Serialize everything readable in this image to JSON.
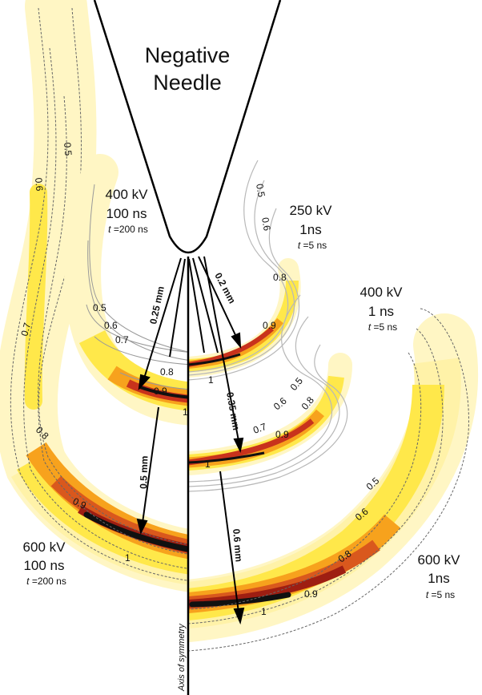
{
  "needle": {
    "line1": "Negative",
    "line2": "Needle"
  },
  "axis_label": "Axis of symmetry",
  "cases": [
    {
      "id": "c400_100",
      "voltage": "400 kV",
      "duration": "100 ns",
      "t_symbol": "t",
      "t_value": " =200 ns",
      "distance": "0.25 mm",
      "contours": [
        "0.5",
        "0.6",
        "0.7",
        "0.8",
        "0.9",
        "1"
      ]
    },
    {
      "id": "c600_100",
      "voltage": "600 kV",
      "duration": "100 ns",
      "t_symbol": "t",
      "t_value": " =200 ns",
      "distance": "0.5 mm",
      "contours": [
        "0.5",
        "0.6",
        "0.7",
        "0.8",
        "0.9",
        "1"
      ]
    },
    {
      "id": "c250_1",
      "voltage": "250 kV",
      "duration": "1ns",
      "t_symbol": "t",
      "t_value": " =5 ns",
      "distance": "0.2 mm",
      "contours": [
        "0.5",
        "0.6",
        "0.8",
        "0.9",
        "1"
      ]
    },
    {
      "id": "c400_1",
      "voltage": "400 kV",
      "duration": "1 ns",
      "t_symbol": "t",
      "t_value": " =5 ns",
      "distance": "0.35 mm",
      "contours": [
        "0.5",
        "0.6",
        "0.7",
        "0.8",
        "0.9",
        "1"
      ]
    },
    {
      "id": "c600_1",
      "voltage": "600 kV",
      "duration": "1ns",
      "t_symbol": "t",
      "t_value": " =5 ns",
      "distance": "0.6 mm",
      "contours": [
        "0.5",
        "0.6",
        "0.8",
        "0.9",
        "1"
      ]
    }
  ],
  "colors": {
    "light": "#fff6c4",
    "yellow": "#ffe84a",
    "orange": "#f7a21d",
    "red": "#c8321c",
    "dark": "#111111",
    "contour": "#b8b8b8"
  }
}
